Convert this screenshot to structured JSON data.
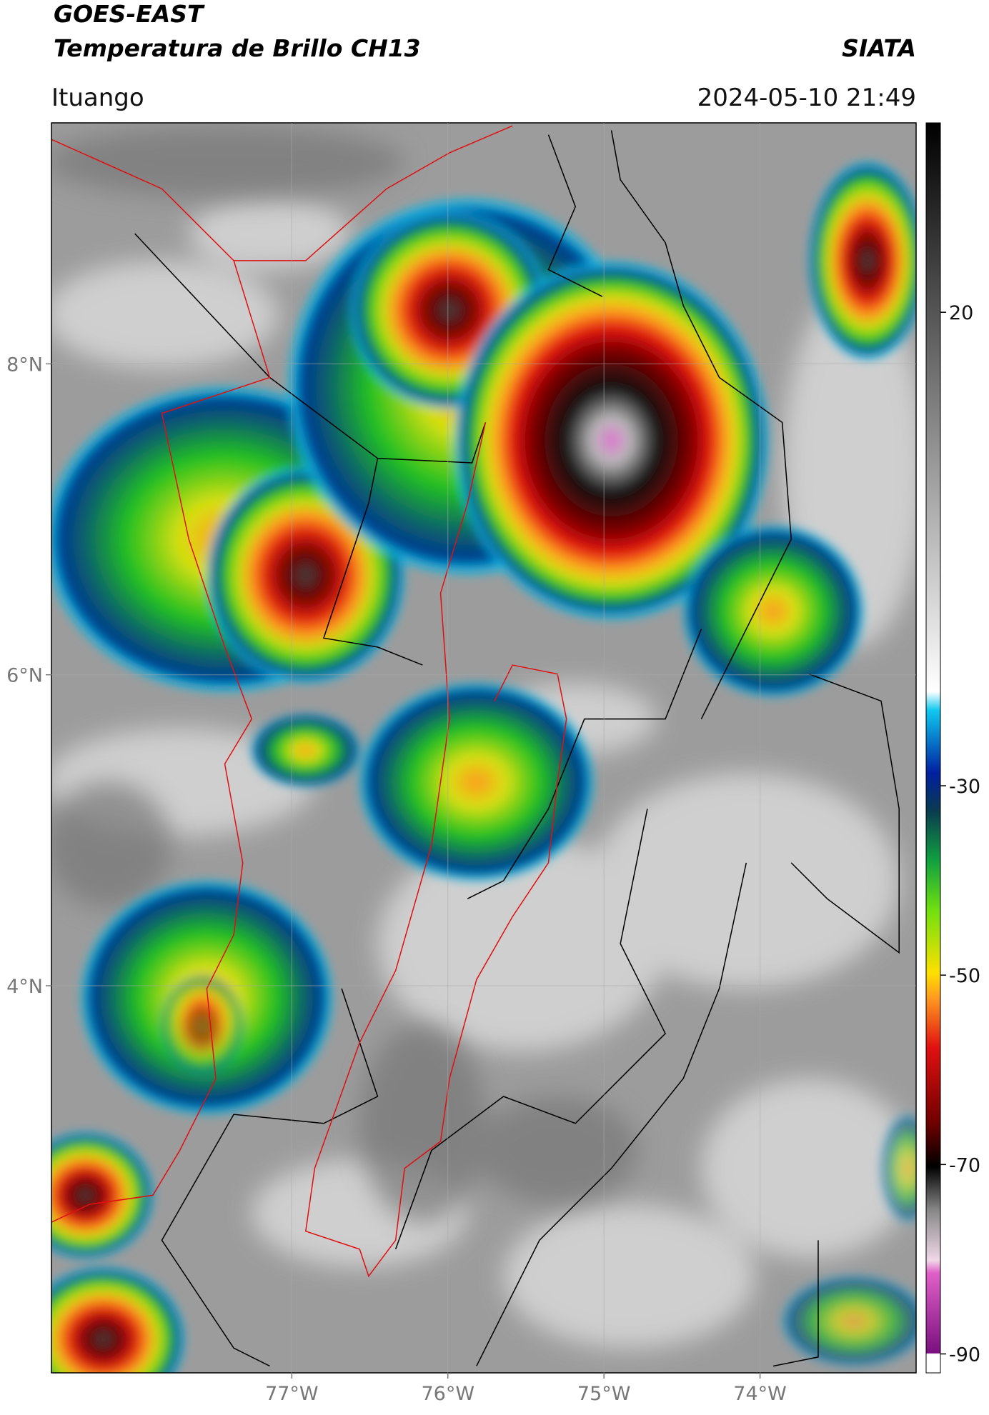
{
  "header": {
    "satellite": "GOES-EAST",
    "product": "Temperatura de Brillo CH13",
    "institution": "SIATA",
    "location": "Ituango",
    "datetime": "2024-05-10 21:49"
  },
  "map": {
    "xlim": [
      -78.54,
      -73.0
    ],
    "ylim": [
      1.51,
      9.55
    ],
    "xticks": [
      {
        "value": -77,
        "label": "77°W"
      },
      {
        "value": -76,
        "label": "76°W"
      },
      {
        "value": -75,
        "label": "75°W"
      },
      {
        "value": -74,
        "label": "74°W"
      }
    ],
    "yticks": [
      {
        "value": 8,
        "label": "8°N"
      },
      {
        "value": 6,
        "label": "6°N"
      },
      {
        "value": 4,
        "label": "4°N"
      }
    ],
    "grid": true
  },
  "colorbar": {
    "ylim": [
      -92,
      40
    ],
    "yticks": [
      20,
      -30,
      -50,
      -70,
      -90
    ]
  }
}
